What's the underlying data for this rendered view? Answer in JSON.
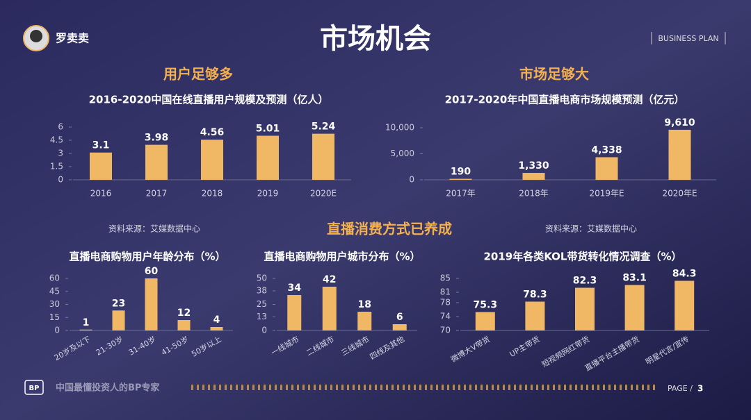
{
  "slide": {
    "brand": "罗卖卖",
    "title": "市场机会",
    "tag": "BUSINESS PLAN",
    "section_users": "用户足够多",
    "section_market": "市场足够大",
    "section_habit": "直播消费方式已养成",
    "source_left": "资料来源：艾媒数据中心",
    "source_right": "资料来源：艾媒数据中心",
    "footer": "中国最懂投资人的BP专家",
    "page_label": "PAGE /",
    "page": 3
  },
  "chart_data": [
    {
      "type": "bar",
      "title": "2016-2020中国在线直播用户规模及预测（亿人）",
      "color": "#f0b764",
      "categories": [
        "2016",
        "2017",
        "2018",
        "2019",
        "2020E"
      ],
      "values": [
        3.1,
        3.98,
        4.56,
        5.01,
        5.24
      ],
      "ylim": [
        0,
        6
      ],
      "yticks": [
        0,
        1.5,
        3,
        4.5,
        6
      ]
    },
    {
      "type": "bar",
      "title": "2017-2020年中国直播电商市场规模预测（亿元）",
      "color": "#f0b764",
      "categories": [
        "2017年",
        "2018年",
        "2019年E",
        "2020年E"
      ],
      "values": [
        190,
        1330,
        4338,
        9610
      ],
      "value_labels": [
        "190",
        "1,330",
        "4,338",
        "9,610"
      ],
      "ylim": [
        0,
        10000
      ],
      "yticks": [
        0,
        {
          "value": 5000,
          "label": "5,000"
        },
        {
          "value": 10000,
          "label": "10,000"
        }
      ]
    },
    {
      "type": "bar",
      "title": "直播电商购物用户年龄分布（%）",
      "color": "#f0b764",
      "categories": [
        "20岁及以下",
        "21-30岁",
        "31-40岁",
        "41-50岁",
        "50岁以上"
      ],
      "values": [
        1,
        23,
        60,
        12,
        4
      ],
      "ylim": [
        0,
        60
      ],
      "yticks": [
        0,
        15,
        30,
        45,
        60
      ]
    },
    {
      "type": "bar",
      "title": "直播电商购物用户城市分布（%）",
      "color": "#f0b764",
      "categories": [
        "一线城市",
        "二线城市",
        "三线城市",
        "四线及其他"
      ],
      "values": [
        34,
        42,
        18,
        6
      ],
      "ylim": [
        0,
        50
      ],
      "yticks": [
        0,
        13,
        25,
        38,
        50
      ]
    },
    {
      "type": "bar",
      "title": "2019年各类KOL带货转化情况调查（%）",
      "color": "#f0b764",
      "categories": [
        "微博大V带货",
        "UP主带货",
        "短视频网红带货",
        "直播平台主播带货",
        "明星代言/宣传"
      ],
      "values": [
        75.3,
        78.3,
        82.3,
        83.1,
        84.3
      ],
      "ylim": [
        70,
        85
      ],
      "yticks": [
        70,
        74,
        78,
        81,
        85
      ]
    }
  ]
}
